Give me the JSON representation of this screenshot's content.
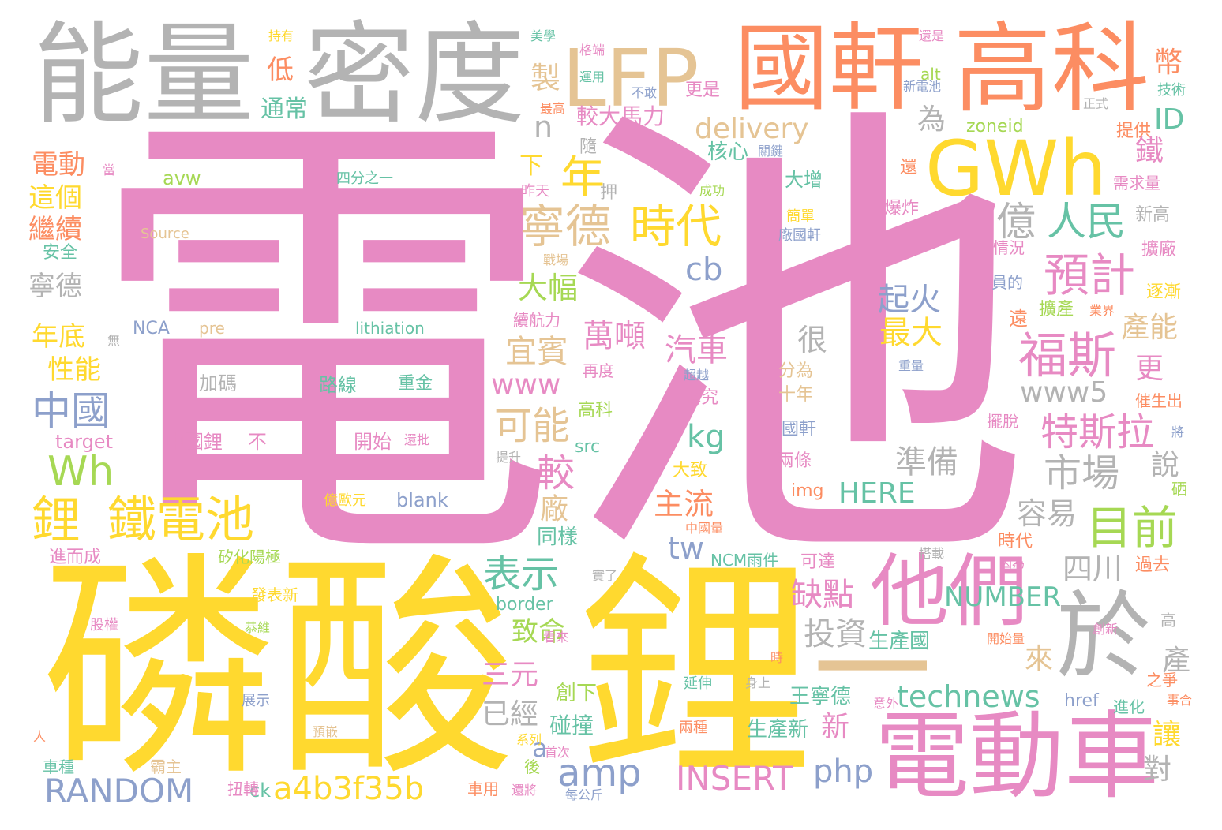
{
  "palette": {
    "pink": "#e78ac3",
    "yellow": "#ffd92f",
    "gray": "#b3b3b3",
    "orange": "#fc8d62",
    "tan": "#e5c494",
    "green": "#a6d854",
    "teal": "#66c2a5",
    "blue": "#8da0cb"
  },
  "words": [
    {
      "text": "電池",
      "color": "#e78ac3"
    },
    {
      "text": "磷酸",
      "color": "#ffd92f"
    },
    {
      "text": "鋰",
      "color": "#ffd92f"
    },
    {
      "text": "能量",
      "color": "#b3b3b3"
    },
    {
      "text": "密度",
      "color": "#b3b3b3"
    },
    {
      "text": "LFP",
      "color": "#e5c494"
    },
    {
      "text": "國軒",
      "color": "#fc8d62"
    },
    {
      "text": "高科",
      "color": "#fc8d62"
    },
    {
      "text": "GWh",
      "color": "#ffd92f"
    },
    {
      "text": "他們",
      "color": "#e78ac3"
    },
    {
      "text": "電動車",
      "color": "#e78ac3"
    },
    {
      "text": "於",
      "color": "#b3b3b3"
    },
    {
      "text": "一",
      "color": "#e5c494"
    },
    {
      "text": "寧德",
      "color": "#e5c494"
    },
    {
      "text": "時代",
      "color": "#ffd92f"
    },
    {
      "text": "年",
      "color": "#ffd92f"
    },
    {
      "text": "億",
      "color": "#b3b3b3"
    },
    {
      "text": "人民",
      "color": "#66c2a5"
    },
    {
      "text": "預計",
      "color": "#e78ac3"
    },
    {
      "text": "福斯",
      "color": "#e78ac3"
    },
    {
      "text": "目前",
      "color": "#a6d854"
    },
    {
      "text": "特斯拉",
      "color": "#e78ac3"
    },
    {
      "text": "市場",
      "color": "#b3b3b3"
    },
    {
      "text": "鋰",
      "color": "#ffd92f"
    },
    {
      "text": "鐵電池",
      "color": "#ffd92f"
    },
    {
      "text": "Wh",
      "color": "#a6d854"
    },
    {
      "text": "中國",
      "color": "#8da0cb"
    },
    {
      "text": "RANDOM",
      "color": "#8da0cb"
    },
    {
      "text": "a4b3f35b",
      "color": "#ffd92f"
    },
    {
      "text": "amp",
      "color": "#8da0cb"
    },
    {
      "text": "INSERT",
      "color": "#e78ac3"
    },
    {
      "text": "php",
      "color": "#8da0cb"
    },
    {
      "text": "technews",
      "color": "#66c2a5"
    },
    {
      "text": "表示",
      "color": "#66c2a5"
    },
    {
      "text": "可能",
      "color": "#e5c494"
    },
    {
      "text": "較",
      "color": "#e78ac3"
    },
    {
      "text": "delivery",
      "color": "#e5c494"
    },
    {
      "text": "製",
      "color": "#e5c494"
    },
    {
      "text": "n",
      "color": "#b3b3b3"
    },
    {
      "text": "為",
      "color": "#b3b3b3"
    },
    {
      "text": "cb",
      "color": "#8da0cb"
    },
    {
      "text": "大幅",
      "color": "#a6d854"
    },
    {
      "text": "萬噸",
      "color": "#e78ac3"
    },
    {
      "text": "宜賓",
      "color": "#e5c494"
    },
    {
      "text": "汽車",
      "color": "#e78ac3"
    },
    {
      "text": "www",
      "color": "#e78ac3"
    },
    {
      "text": "kg",
      "color": "#66c2a5"
    },
    {
      "text": "主流",
      "color": "#fc8d62"
    },
    {
      "text": "tw",
      "color": "#8da0cb"
    },
    {
      "text": "起火",
      "color": "#8da0cb"
    },
    {
      "text": "最大",
      "color": "#ffd92f"
    },
    {
      "text": "準備",
      "color": "#b3b3b3"
    },
    {
      "text": "容易",
      "color": "#b3b3b3"
    },
    {
      "text": "四川",
      "color": "#b3b3b3"
    },
    {
      "text": "缺點",
      "color": "#e78ac3"
    },
    {
      "text": "投資",
      "color": "#b3b3b3"
    },
    {
      "text": "NUMBER",
      "color": "#66c2a5"
    },
    {
      "text": "HERE",
      "color": "#66c2a5"
    },
    {
      "text": "www5",
      "color": "#b3b3b3"
    },
    {
      "text": "更",
      "color": "#e78ac3"
    },
    {
      "text": "產能",
      "color": "#e5c494"
    },
    {
      "text": "鐵",
      "color": "#e78ac3"
    },
    {
      "text": "ID",
      "color": "#66c2a5"
    },
    {
      "text": "幣",
      "color": "#fc8d62"
    },
    {
      "text": "說",
      "color": "#b3b3b3"
    },
    {
      "text": "產",
      "color": "#b3b3b3"
    },
    {
      "text": "讓",
      "color": "#ffd92f"
    },
    {
      "text": "對",
      "color": "#b3b3b3"
    },
    {
      "text": "來",
      "color": "#e5c494"
    },
    {
      "text": "新",
      "color": "#e78ac3"
    },
    {
      "text": "電動",
      "color": "#fc8d62"
    },
    {
      "text": "這個",
      "color": "#ffd92f"
    },
    {
      "text": "繼續",
      "color": "#fc8d62"
    },
    {
      "text": "寧德",
      "color": "#b3b3b3"
    },
    {
      "text": "年底",
      "color": "#ffd92f"
    },
    {
      "text": "性能",
      "color": "#ffd92f"
    },
    {
      "text": "低",
      "color": "#fc8d62"
    },
    {
      "text": "通常",
      "color": "#66c2a5"
    },
    {
      "text": "較大馬力",
      "color": "#e78ac3"
    },
    {
      "text": "核心",
      "color": "#66c2a5"
    },
    {
      "text": "下",
      "color": "#ffd92f"
    },
    {
      "text": "很",
      "color": "#b3b3b3"
    },
    {
      "text": "三元",
      "color": "#e78ac3"
    },
    {
      "text": "已經",
      "color": "#b3b3b3"
    },
    {
      "text": "致命",
      "color": "#a6d854"
    },
    {
      "text": "a",
      "color": "#8da0cb"
    },
    {
      "text": "廠",
      "color": "#e5c494"
    },
    {
      "text": "同樣",
      "color": "#66c2a5"
    },
    {
      "text": "碰撞",
      "color": "#66c2a5"
    },
    {
      "text": "創下",
      "color": "#a6d854"
    },
    {
      "text": "生產國",
      "color": "#66c2a5"
    },
    {
      "text": "王寧德",
      "color": "#66c2a5"
    },
    {
      "text": "生產新",
      "color": "#66c2a5"
    },
    {
      "text": "zoneid",
      "color": "#a6d854"
    },
    {
      "text": "avw",
      "color": "#a6d854"
    },
    {
      "text": "四分之一",
      "color": "#66c2a5"
    },
    {
      "text": "Source",
      "color": "#e5c494"
    },
    {
      "text": "NCA",
      "color": "#8da0cb"
    },
    {
      "text": "pre",
      "color": "#e5c494"
    },
    {
      "text": "lithiation",
      "color": "#66c2a5"
    },
    {
      "text": "加碼",
      "color": "#b3b3b3"
    },
    {
      "text": "路線",
      "color": "#66c2a5"
    },
    {
      "text": "重金",
      "color": "#66c2a5"
    },
    {
      "text": "target",
      "color": "#e78ac3"
    },
    {
      "text": "中國鋰",
      "color": "#e78ac3"
    },
    {
      "text": "不",
      "color": "#e78ac3"
    },
    {
      "text": "開始",
      "color": "#e78ac3"
    },
    {
      "text": "src",
      "color": "#66c2a5"
    },
    {
      "text": "blank",
      "color": "#8da0cb"
    },
    {
      "text": "img",
      "color": "#fc8d62"
    },
    {
      "text": "border",
      "color": "#66c2a5"
    },
    {
      "text": "ck",
      "color": "#66c2a5"
    },
    {
      "text": "href",
      "color": "#8da0cb"
    },
    {
      "text": "alt",
      "color": "#a6d854"
    },
    {
      "text": "持有",
      "color": "#ffd92f"
    },
    {
      "text": "美學",
      "color": "#66c2a5"
    },
    {
      "text": "格端",
      "color": "#e78ac3"
    },
    {
      "text": "還是",
      "color": "#e78ac3"
    },
    {
      "text": "運用",
      "color": "#66c2a5"
    },
    {
      "text": "不敢",
      "color": "#8da0cb"
    },
    {
      "text": "更是",
      "color": "#e78ac3"
    },
    {
      "text": "新電池",
      "color": "#8da0cb"
    },
    {
      "text": "技術",
      "color": "#66c2a5"
    },
    {
      "text": "正式",
      "color": "#b3b3b3"
    },
    {
      "text": "最高",
      "color": "#fc8d62"
    },
    {
      "text": "提供",
      "color": "#fc8d62"
    },
    {
      "text": "隨",
      "color": "#b3b3b3"
    },
    {
      "text": "關鍵",
      "color": "#8da0cb"
    },
    {
      "text": "昨天",
      "color": "#e78ac3"
    },
    {
      "text": "押",
      "color": "#b3b3b3"
    },
    {
      "text": "成功",
      "color": "#a6d854"
    },
    {
      "text": "還",
      "color": "#fc8d62"
    },
    {
      "text": "大增",
      "color": "#66c2a5"
    },
    {
      "text": "需求量",
      "color": "#e78ac3"
    },
    {
      "text": "爆炸",
      "color": "#e78ac3"
    },
    {
      "text": "新高",
      "color": "#b3b3b3"
    },
    {
      "text": "簡單",
      "color": "#ffd92f"
    },
    {
      "text": "廠國軒",
      "color": "#8da0cb"
    },
    {
      "text": "戰場",
      "color": "#e5c494"
    },
    {
      "text": "情況",
      "color": "#e78ac3"
    },
    {
      "text": "擴廠",
      "color": "#e78ac3"
    },
    {
      "text": "員的",
      "color": "#8da0cb"
    },
    {
      "text": "逐漸",
      "color": "#ffd92f"
    },
    {
      "text": "擴產",
      "color": "#a6d854"
    },
    {
      "text": "業界",
      "color": "#fc8d62"
    },
    {
      "text": "遠",
      "color": "#fc8d62"
    },
    {
      "text": "續航力",
      "color": "#e78ac3"
    },
    {
      "text": "再度",
      "color": "#e78ac3"
    },
    {
      "text": "超越",
      "color": "#8da0cb"
    },
    {
      "text": "講究",
      "color": "#e78ac3"
    },
    {
      "text": "分為",
      "color": "#e5c494"
    },
    {
      "text": "十年",
      "color": "#e5c494"
    },
    {
      "text": "重量",
      "color": "#8da0cb"
    },
    {
      "text": "高科",
      "color": "#a6d854"
    },
    {
      "text": "國軒",
      "color": "#8da0cb"
    },
    {
      "text": "兩條",
      "color": "#e78ac3"
    },
    {
      "text": "催生出",
      "color": "#fc8d62"
    },
    {
      "text": "擺脫",
      "color": "#e78ac3"
    },
    {
      "text": "將",
      "color": "#8da0cb"
    },
    {
      "text": "提升",
      "color": "#b3b3b3"
    },
    {
      "text": "還批",
      "color": "#e78ac3"
    },
    {
      "text": "大致",
      "color": "#ffd92f"
    },
    {
      "text": "億歐元",
      "color": "#ffd92f"
    },
    {
      "text": "硒",
      "color": "#a6d854"
    },
    {
      "text": "中國量",
      "color": "#fc8d62"
    },
    {
      "text": "搭載",
      "color": "#b3b3b3"
    },
    {
      "text": "時代",
      "color": "#fc8d62"
    },
    {
      "text": "因為",
      "color": "#e78ac3"
    },
    {
      "text": "過去",
      "color": "#fc8d62"
    },
    {
      "text": "矽化陽極",
      "color": "#a6d854"
    },
    {
      "text": "進而成",
      "color": "#e78ac3"
    },
    {
      "text": "NCM雨件",
      "color": "#66c2a5"
    },
    {
      "text": "可達",
      "color": "#e78ac3"
    },
    {
      "text": "實了",
      "color": "#b3b3b3"
    },
    {
      "text": "發表新",
      "color": "#ffd92f"
    },
    {
      "text": "股權",
      "color": "#e78ac3"
    },
    {
      "text": "恭維",
      "color": "#a6d854"
    },
    {
      "text": "看來",
      "color": "#e78ac3"
    },
    {
      "text": "開始量",
      "color": "#fc8d62"
    },
    {
      "text": "創新",
      "color": "#e78ac3"
    },
    {
      "text": "高",
      "color": "#b3b3b3"
    },
    {
      "text": "時",
      "color": "#fc8d62"
    },
    {
      "text": "延伸",
      "color": "#66c2a5"
    },
    {
      "text": "身上",
      "color": "#b3b3b3"
    },
    {
      "text": "意外",
      "color": "#e78ac3"
    },
    {
      "text": "之爭",
      "color": "#fc8d62"
    },
    {
      "text": "事合",
      "color": "#fc8d62"
    },
    {
      "text": "展示",
      "color": "#8da0cb"
    },
    {
      "text": "進化",
      "color": "#66c2a5"
    },
    {
      "text": "人",
      "color": "#fc8d62"
    },
    {
      "text": "預嵌",
      "color": "#e5c494"
    },
    {
      "text": "系列",
      "color": "#ffd92f"
    },
    {
      "text": "首次",
      "color": "#e78ac3"
    },
    {
      "text": "兩種",
      "color": "#fc8d62"
    },
    {
      "text": "車種",
      "color": "#66c2a5"
    },
    {
      "text": "霸主",
      "color": "#e5c494"
    },
    {
      "text": "後",
      "color": "#a6d854"
    },
    {
      "text": "扭轉",
      "color": "#e78ac3"
    },
    {
      "text": "車用",
      "color": "#fc8d62"
    },
    {
      "text": "還將",
      "color": "#e78ac3"
    },
    {
      "text": "每公斤",
      "color": "#8da0cb"
    },
    {
      "text": "安全",
      "color": "#66c2a5"
    },
    {
      "text": "當",
      "color": "#e78ac3"
    },
    {
      "text": "無",
      "color": "#b3b3b3"
    }
  ]
}
